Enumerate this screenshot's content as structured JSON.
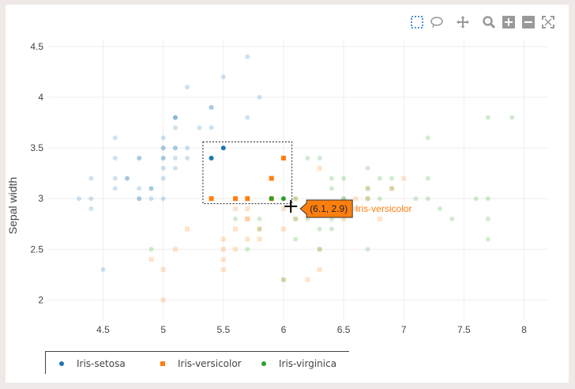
{
  "chart_data": {
    "type": "scatter",
    "title": "",
    "xlabel": "",
    "ylabel": "Sepal width",
    "xlim": [
      4.05,
      8.2
    ],
    "ylim": [
      1.8,
      4.57
    ],
    "xticks": [
      "4.5",
      "5",
      "5.5",
      "6",
      "6.5",
      "7",
      "7.5",
      "8"
    ],
    "xtick_values": [
      4.5,
      5,
      5.5,
      6,
      6.5,
      7,
      7.5,
      8
    ],
    "yticks": [
      "2",
      "2.5",
      "3",
      "3.5",
      "4",
      "4.5"
    ],
    "ytick_values": [
      2,
      2.5,
      3,
      3.5,
      4,
      4.5
    ],
    "grid": true,
    "legend_position": "bottom-left",
    "selection_box": {
      "x": [
        5.33,
        6.07
      ],
      "y": [
        2.95,
        3.56
      ]
    },
    "hover": {
      "x": 6.1,
      "y": 2.9,
      "label": "(6.1, 2.9)",
      "series": "Iris-versicolor"
    },
    "series": [
      {
        "name": "Iris-setosa",
        "color": "#1f77b4",
        "marker": "circle",
        "points": [
          [
            4.3,
            3.0
          ],
          [
            4.4,
            3.0
          ],
          [
            4.4,
            3.2
          ],
          [
            4.4,
            2.9
          ],
          [
            4.5,
            2.3
          ],
          [
            4.6,
            3.1
          ],
          [
            4.6,
            3.4
          ],
          [
            4.6,
            3.6
          ],
          [
            4.6,
            3.2
          ],
          [
            4.7,
            3.2
          ],
          [
            4.7,
            3.2
          ],
          [
            4.8,
            3.4
          ],
          [
            4.8,
            3.0
          ],
          [
            4.8,
            3.4
          ],
          [
            4.8,
            3.1
          ],
          [
            4.8,
            3.0
          ],
          [
            4.9,
            3.0
          ],
          [
            4.9,
            3.1
          ],
          [
            4.9,
            3.1
          ],
          [
            5.0,
            3.6
          ],
          [
            5.0,
            3.4
          ],
          [
            5.0,
            3.0
          ],
          [
            5.0,
            3.4
          ],
          [
            5.0,
            3.2
          ],
          [
            5.0,
            3.5
          ],
          [
            5.0,
            3.5
          ],
          [
            5.0,
            3.3
          ],
          [
            5.1,
            3.5
          ],
          [
            5.1,
            3.8
          ],
          [
            5.1,
            3.7
          ],
          [
            5.1,
            3.3
          ],
          [
            5.1,
            3.4
          ],
          [
            5.1,
            3.8
          ],
          [
            5.1,
            3.8
          ],
          [
            5.1,
            3.5
          ],
          [
            5.2,
            3.5
          ],
          [
            5.2,
            3.4
          ],
          [
            5.2,
            4.1
          ],
          [
            5.3,
            3.7
          ],
          [
            5.4,
            3.9
          ],
          [
            5.4,
            3.7
          ],
          [
            5.4,
            3.9
          ],
          [
            5.4,
            3.4
          ],
          [
            5.4,
            3.4
          ],
          [
            5.5,
            4.2
          ],
          [
            5.5,
            3.5
          ],
          [
            5.7,
            4.4
          ],
          [
            5.7,
            3.8
          ],
          [
            5.8,
            4.0
          ]
        ],
        "selected": [
          [
            5.4,
            3.4
          ],
          [
            5.5,
            3.5
          ]
        ]
      },
      {
        "name": "Iris-versicolor",
        "color": "#ff7f0e",
        "marker": "square",
        "points": [
          [
            4.9,
            2.4
          ],
          [
            5.0,
            2.0
          ],
          [
            5.0,
            2.3
          ],
          [
            5.1,
            2.5
          ],
          [
            5.2,
            2.7
          ],
          [
            5.5,
            2.3
          ],
          [
            5.5,
            2.4
          ],
          [
            5.5,
            2.6
          ],
          [
            5.5,
            2.5
          ],
          [
            5.6,
            2.9
          ],
          [
            5.6,
            2.5
          ],
          [
            5.6,
            2.7
          ],
          [
            5.7,
            2.8
          ],
          [
            5.7,
            2.6
          ],
          [
            5.7,
            2.8
          ],
          [
            5.7,
            2.9
          ],
          [
            5.8,
            2.7
          ],
          [
            5.8,
            2.6
          ],
          [
            6.0,
            2.2
          ],
          [
            6.0,
            2.9
          ],
          [
            6.0,
            2.7
          ],
          [
            6.1,
            2.8
          ],
          [
            6.1,
            3.0
          ],
          [
            6.2,
            2.2
          ],
          [
            6.2,
            2.9
          ],
          [
            6.3,
            2.5
          ],
          [
            6.3,
            2.3
          ],
          [
            6.3,
            3.3
          ],
          [
            6.4,
            2.9
          ],
          [
            6.5,
            2.8
          ],
          [
            6.6,
            2.9
          ],
          [
            6.6,
            3.0
          ],
          [
            6.7,
            3.1
          ],
          [
            6.7,
            3.0
          ],
          [
            6.8,
            2.8
          ],
          [
            6.9,
            3.1
          ],
          [
            7.0,
            3.2
          ]
        ],
        "selected": [
          [
            5.4,
            3.0
          ],
          [
            5.6,
            3.0
          ],
          [
            5.7,
            3.0
          ],
          [
            5.9,
            3.2
          ],
          [
            6.0,
            3.4
          ],
          [
            5.9,
            3.0
          ]
        ]
      },
      {
        "name": "Iris-virginica",
        "color": "#2ca02c",
        "marker": "circle",
        "points": [
          [
            4.9,
            2.5
          ],
          [
            5.6,
            2.8
          ],
          [
            5.7,
            2.5
          ],
          [
            5.8,
            2.8
          ],
          [
            5.8,
            2.7
          ],
          [
            6.0,
            2.2
          ],
          [
            6.1,
            2.8
          ],
          [
            6.1,
            3.0
          ],
          [
            6.1,
            2.6
          ],
          [
            6.2,
            2.8
          ],
          [
            6.2,
            3.4
          ],
          [
            6.3,
            2.9
          ],
          [
            6.3,
            2.7
          ],
          [
            6.3,
            2.5
          ],
          [
            6.3,
            3.4
          ],
          [
            6.4,
            2.7
          ],
          [
            6.4,
            3.2
          ],
          [
            6.4,
            2.8
          ],
          [
            6.4,
            3.1
          ],
          [
            6.5,
            3.2
          ],
          [
            6.5,
            3.0
          ],
          [
            6.5,
            3.0
          ],
          [
            6.7,
            2.5
          ],
          [
            6.7,
            3.3
          ],
          [
            6.7,
            3.1
          ],
          [
            6.7,
            3.0
          ],
          [
            6.8,
            3.2
          ],
          [
            6.8,
            3.0
          ],
          [
            6.9,
            3.2
          ],
          [
            6.9,
            3.1
          ],
          [
            7.1,
            3.0
          ],
          [
            7.2,
            3.6
          ],
          [
            7.2,
            3.2
          ],
          [
            7.2,
            3.0
          ],
          [
            7.3,
            2.9
          ],
          [
            7.4,
            2.8
          ],
          [
            7.6,
            3.0
          ],
          [
            7.7,
            3.8
          ],
          [
            7.7,
            2.6
          ],
          [
            7.7,
            2.8
          ],
          [
            7.7,
            3.0
          ],
          [
            7.9,
            3.8
          ]
        ],
        "selected": [
          [
            5.9,
            3.0
          ],
          [
            6.0,
            3.0
          ]
        ]
      }
    ]
  },
  "modebar": {
    "icons": [
      "box-select-icon",
      "lasso-select-icon",
      "pan-icon",
      "zoom-icon",
      "zoom-in-icon",
      "zoom-out-icon",
      "autoscale-icon"
    ]
  }
}
